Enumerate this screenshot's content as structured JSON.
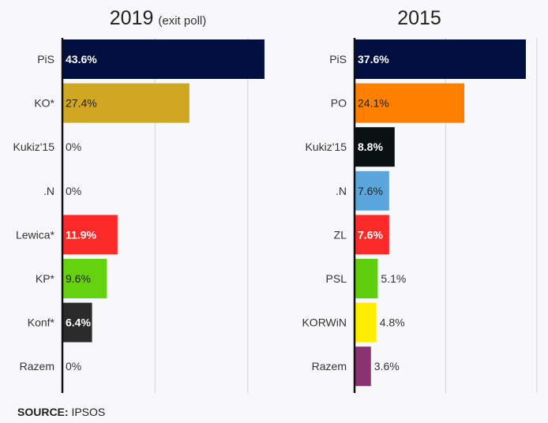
{
  "chart_data": [
    {
      "type": "bar",
      "orientation": "horizontal",
      "title": "2019",
      "subtitle": "(exit poll)",
      "categories": [
        "PiS",
        "KO*",
        "Kukiz'15",
        ".N",
        "Lewica*",
        "KP*",
        "Konf*",
        "Razem"
      ],
      "values": [
        43.6,
        27.4,
        0,
        0,
        11.9,
        9.6,
        6.4,
        0
      ],
      "labels": [
        "43.6%",
        "27.4%",
        "0%",
        "0%",
        "11.9%",
        "9.6%",
        "6.4%",
        "0%"
      ],
      "colors": [
        "#010f40",
        "#cfa722",
        "#f8f8fa",
        "#f8f8fa",
        "#fd2a2a",
        "#65d20f",
        "#2b2a2a",
        "#f8f8fa"
      ],
      "label_colors": [
        "#ffffff",
        "#222222",
        "#333333",
        "#333333",
        "#ffffff",
        "#222222",
        "#ffffff",
        "#333333"
      ],
      "xlim": [
        0,
        45
      ],
      "gridlines": [
        20,
        40
      ],
      "grid": true
    },
    {
      "type": "bar",
      "orientation": "horizontal",
      "title": "2015",
      "categories": [
        "PiS",
        "PO",
        "Kukiz'15",
        ".N",
        "ZL",
        "PSL",
        "KORWiN",
        "Razem"
      ],
      "values": [
        37.6,
        24.1,
        8.8,
        7.6,
        7.6,
        5.1,
        4.8,
        3.6
      ],
      "labels": [
        "37.6%",
        "24.1%",
        "8.8%",
        "7.6%",
        "7.6%",
        "5.1%",
        "4.8%",
        "3.6%"
      ],
      "colors": [
        "#010f40",
        "#ff7f00",
        "#0a1112",
        "#5aa6dc",
        "#fd2a2a",
        "#5fce0e",
        "#ffed00",
        "#8b3270"
      ],
      "label_colors": [
        "#ffffff",
        "#222222",
        "#ffffff",
        "#222222",
        "#ffffff",
        "#333333",
        "#333333",
        "#333333"
      ],
      "xlim": [
        0,
        40
      ],
      "gridlines": [
        20,
        40
      ],
      "grid": true
    }
  ],
  "source": {
    "label": "SOURCE:",
    "value": "IPSOS"
  }
}
